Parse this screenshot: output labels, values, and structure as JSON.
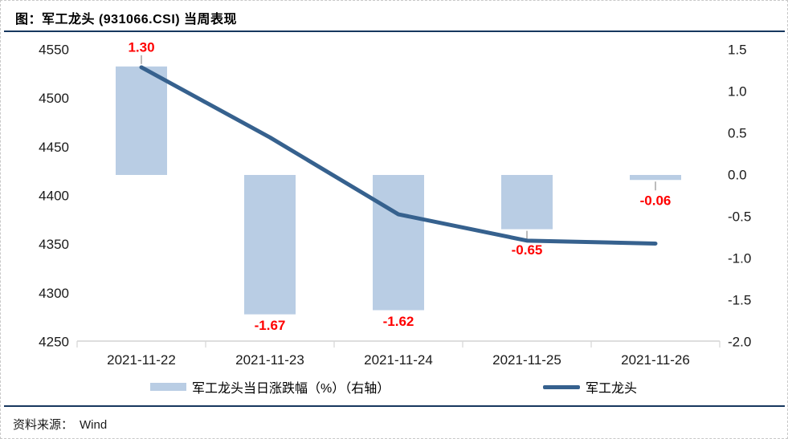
{
  "page": {
    "title": "图：军工龙头 (931066.CSI) 当周表现",
    "source_label": "资料来源：",
    "source_value": "Wind"
  },
  "colors": {
    "accent_rule": "#17375e",
    "bar_fill": "#b9cde4",
    "line_stroke": "#36618e",
    "value_label": "#ff0000",
    "axis_line": "#d9d9d9",
    "axis_text": "#1a1a1a",
    "leader_tick": "#a6a6a6"
  },
  "chart_data": {
    "type": "combo",
    "title": "军工龙头 (931066.CSI) 当周表现",
    "categories": [
      "2021-11-22",
      "2021-11-23",
      "2021-11-24",
      "2021-11-25",
      "2021-11-26"
    ],
    "series": [
      {
        "name": "军工龙头当日涨跌幅（%）（右轴）",
        "type": "bar",
        "axis": "right",
        "values": [
          1.3,
          -1.67,
          -1.62,
          -0.65,
          -0.06
        ],
        "value_labels": [
          "1.30",
          "-1.67",
          "-1.62",
          "-0.65",
          "-0.06"
        ],
        "label_leader": [
          true,
          false,
          false,
          true,
          true
        ]
      },
      {
        "name": "军工龙头",
        "type": "line",
        "axis": "left",
        "values": [
          4532,
          4460,
          4381,
          4354,
          4351
        ]
      }
    ],
    "left_axis": {
      "min": 4250,
      "max": 4550,
      "step": 50,
      "ticks": [
        "4550",
        "4500",
        "4450",
        "4400",
        "4350",
        "4300",
        "4250"
      ]
    },
    "right_axis": {
      "min": -2.0,
      "max": 1.5,
      "step": 0.5,
      "ticks": [
        "1.5",
        "1.0",
        "0.5",
        "0.0",
        "-0.5",
        "-1.0",
        "-1.5",
        "-2.0"
      ]
    },
    "grid": false,
    "legend_position": "bottom"
  }
}
